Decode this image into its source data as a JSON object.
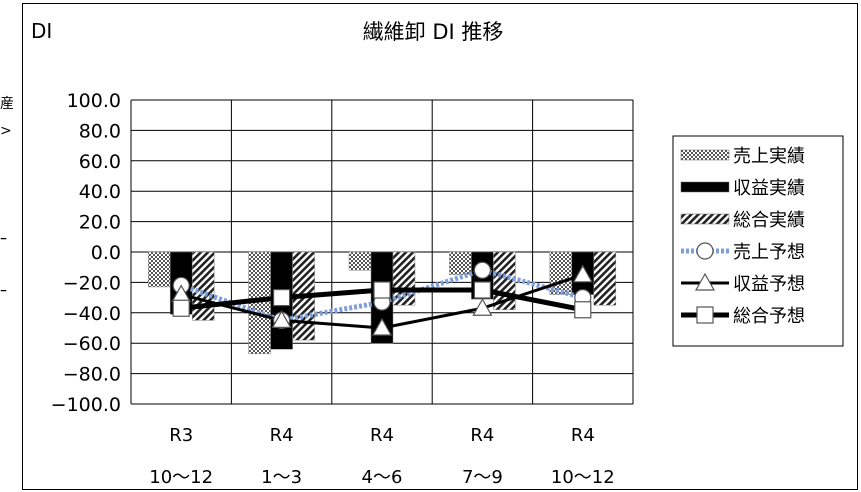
{
  "edge_fragments": [
    "産",
    ">",
    "ｰ",
    "ｰ"
  ],
  "chart_data": {
    "type": "bar",
    "title": "繊維卸 DI 推移",
    "ylabel": "DI",
    "ylim": [
      -100,
      100
    ],
    "yticks": [
      "100.0",
      "80.0",
      "60.0",
      "40.0",
      "20.0",
      "0.0",
      "−20.0",
      "−40.0",
      "−60.0",
      "−80.0",
      "−100.0"
    ],
    "categories": [
      {
        "line1": "R3",
        "line2": "10〜12"
      },
      {
        "line1": "R4",
        "line2": "1〜3"
      },
      {
        "line1": "R4",
        "line2": "4〜6"
      },
      {
        "line1": "R4",
        "line2": "7〜9"
      },
      {
        "line1": "R4",
        "line2": "10〜12"
      }
    ],
    "grid": true,
    "legend_position": "right",
    "bar_series": [
      {
        "name": "売上実績",
        "pattern": "dotted",
        "values": [
          -23,
          -67,
          -12,
          -15,
          -28
        ]
      },
      {
        "name": "収益実績",
        "pattern": "solid",
        "values": [
          -41,
          -64,
          -60,
          -31,
          -28
        ]
      },
      {
        "name": "総合実績",
        "pattern": "hatched",
        "values": [
          -45,
          -58,
          -35,
          -38,
          -35
        ]
      }
    ],
    "line_series": [
      {
        "name": "売上予想",
        "marker": "circle",
        "style": "blue-dotted",
        "values": [
          -22,
          -45,
          -33,
          -12,
          -30
        ]
      },
      {
        "name": "収益予想",
        "marker": "triangle",
        "style": "black",
        "values": [
          -28,
          -45,
          -50,
          -37,
          -15
        ]
      },
      {
        "name": "総合予想",
        "marker": "square",
        "style": "black-thick",
        "values": [
          -37,
          -30,
          -25,
          -25,
          -38
        ]
      }
    ]
  }
}
